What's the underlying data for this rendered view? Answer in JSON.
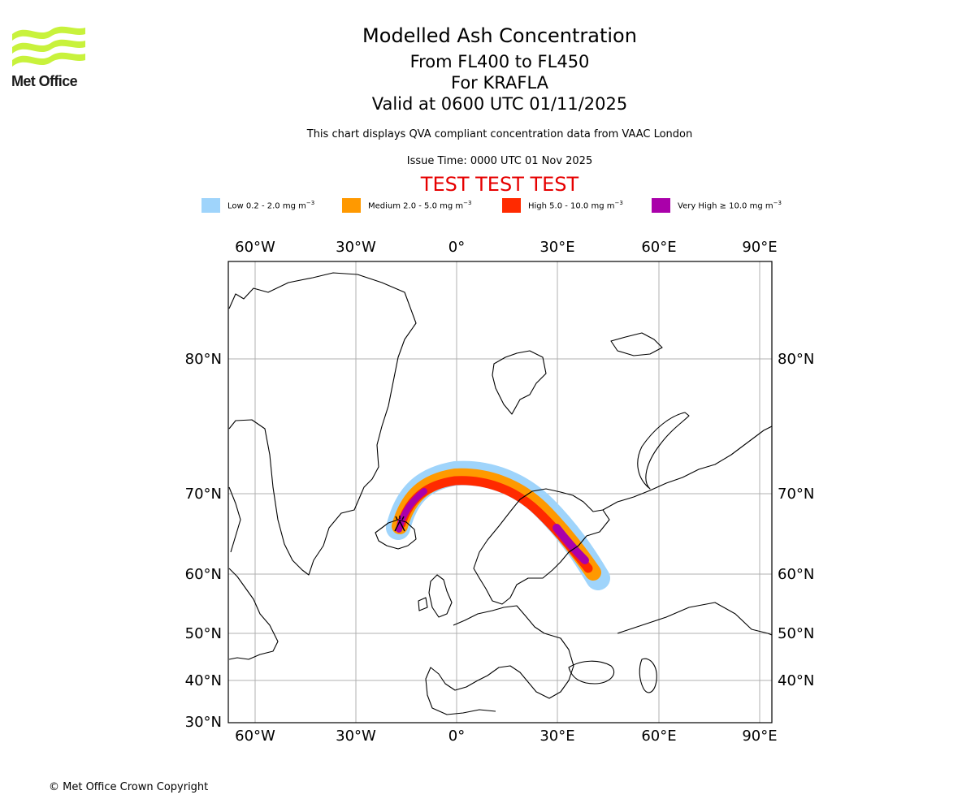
{
  "logo": {
    "name": "Met Office"
  },
  "header": {
    "title": "Modelled Ash Concentration",
    "levels": "From FL400 to FL450",
    "volcano": "For KRAFLA",
    "valid": "Valid at 0600 UTC 01/11/2025",
    "note": "This chart displays QVA compliant concentration data from VAAC London",
    "issue": "Issue Time: 0000 UTC 01 Nov 2025",
    "test_banner": "TEST TEST TEST"
  },
  "legend": [
    {
      "label": "Low 0.2 - 2.0 mg m",
      "sup": "−3",
      "color": "#9fd4fb"
    },
    {
      "label": "Medium 2.0 - 5.0 mg m",
      "sup": "−3",
      "color": "#ff9900"
    },
    {
      "label": "High 5.0 - 10.0 mg m",
      "sup": "−3",
      "color": "#ff2a00"
    },
    {
      "label": "Very High ≥ 10.0 mg m",
      "sup": "−3",
      "color": "#aa00aa"
    }
  ],
  "map": {
    "lon_ticks": [
      "60°W",
      "30°W",
      "0°",
      "30°E",
      "60°E",
      "90°E"
    ],
    "lat_ticks": [
      "80°N",
      "70°N",
      "60°N",
      "50°N",
      "40°N",
      "30°N"
    ],
    "grid": true,
    "colors": {
      "land_outline": "#000000",
      "grid": "#b0b0b0",
      "frame": "#000000"
    }
  },
  "footer": {
    "copyright": "© Met Office Crown Copyright"
  }
}
